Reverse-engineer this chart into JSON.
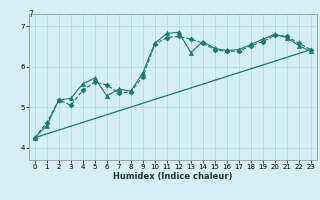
{
  "xlabel": "Humidex (Indice chaleur)",
  "bg_color": "#d6eef5",
  "grid_color": "#b8d4dc",
  "line_color": "#1a7a6e",
  "xlim": [
    -0.5,
    23.5
  ],
  "ylim": [
    3.7,
    7.3
  ],
  "yticks": [
    4,
    5,
    6,
    7
  ],
  "ytick_labels": [
    "4",
    "5",
    "6",
    "7"
  ],
  "xticks": [
    0,
    1,
    2,
    3,
    4,
    5,
    6,
    7,
    8,
    9,
    10,
    11,
    12,
    13,
    14,
    15,
    16,
    17,
    18,
    19,
    20,
    21,
    22,
    23
  ],
  "series1_x": [
    0,
    1,
    2,
    3,
    4,
    5,
    6,
    7,
    8,
    9,
    10,
    11,
    12,
    13,
    14,
    15,
    16,
    17,
    18,
    19,
    20,
    21,
    22,
    23
  ],
  "series1_y": [
    4.25,
    4.62,
    5.18,
    5.05,
    5.42,
    5.62,
    5.55,
    5.35,
    5.38,
    5.75,
    6.55,
    6.72,
    6.75,
    6.68,
    6.58,
    6.42,
    6.38,
    6.38,
    6.52,
    6.62,
    6.78,
    6.75,
    6.58,
    6.42
  ],
  "series2_x": [
    0,
    1,
    2,
    3,
    4,
    5,
    6,
    7,
    8,
    9,
    10,
    11,
    12,
    13,
    14,
    15,
    16,
    17,
    18,
    19,
    20,
    21,
    22,
    23
  ],
  "series2_y": [
    4.25,
    4.55,
    5.18,
    5.22,
    5.58,
    5.72,
    5.28,
    5.45,
    5.4,
    5.85,
    6.58,
    6.82,
    6.85,
    6.35,
    6.62,
    6.45,
    6.4,
    6.42,
    6.55,
    6.68,
    6.8,
    6.72,
    6.52,
    6.38
  ],
  "series3_x": [
    0,
    23
  ],
  "series3_y": [
    4.25,
    6.42
  ],
  "top_label": "7",
  "xlabel_fontsize": 6.0,
  "tick_fontsize": 5.0
}
